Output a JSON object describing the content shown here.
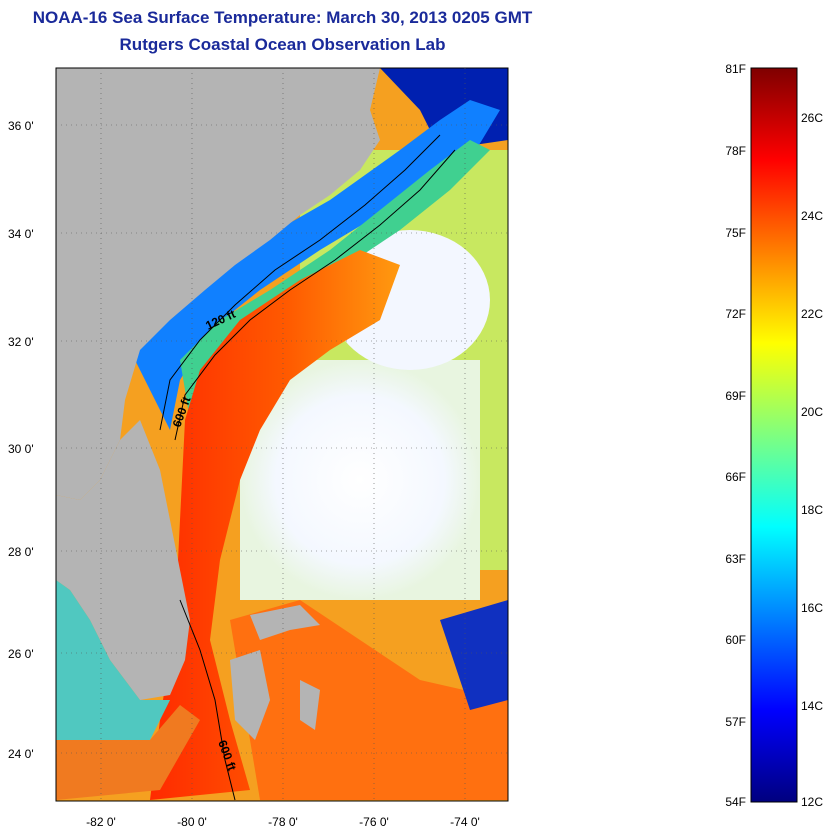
{
  "header": {
    "title": "NOAA-16 Sea Surface Temperature:  March 30, 2013 0205 GMT",
    "subtitle": "Rutgers Coastal Ocean Observation Lab"
  },
  "map": {
    "lat_labels": [
      "36 0'",
      "34 0'",
      "32 0'",
      "30 0'",
      "28 0'",
      "26 0'",
      "24 0'"
    ],
    "lon_labels": [
      "-82 0'",
      "-80 0'",
      "-78 0'",
      "-76 0'",
      "-74 0'"
    ],
    "contour_labels": [
      "120 ft",
      "600 ft",
      "600 ft"
    ],
    "land_color": "#b4b4b4"
  },
  "colorbar": {
    "fahrenheit_labels": [
      "81F",
      "78F",
      "75F",
      "72F",
      "69F",
      "66F",
      "63F",
      "60F",
      "57F",
      "54F"
    ],
    "celsius_labels": [
      "26C",
      "24C",
      "22C",
      "20C",
      "18C",
      "16C",
      "14C",
      "12C"
    ],
    "colors": [
      "#00007f",
      "#0000ff",
      "#007fff",
      "#00ffff",
      "#7fff7f",
      "#ffff00",
      "#ff7f00",
      "#ff0000",
      "#7f0000"
    ]
  }
}
